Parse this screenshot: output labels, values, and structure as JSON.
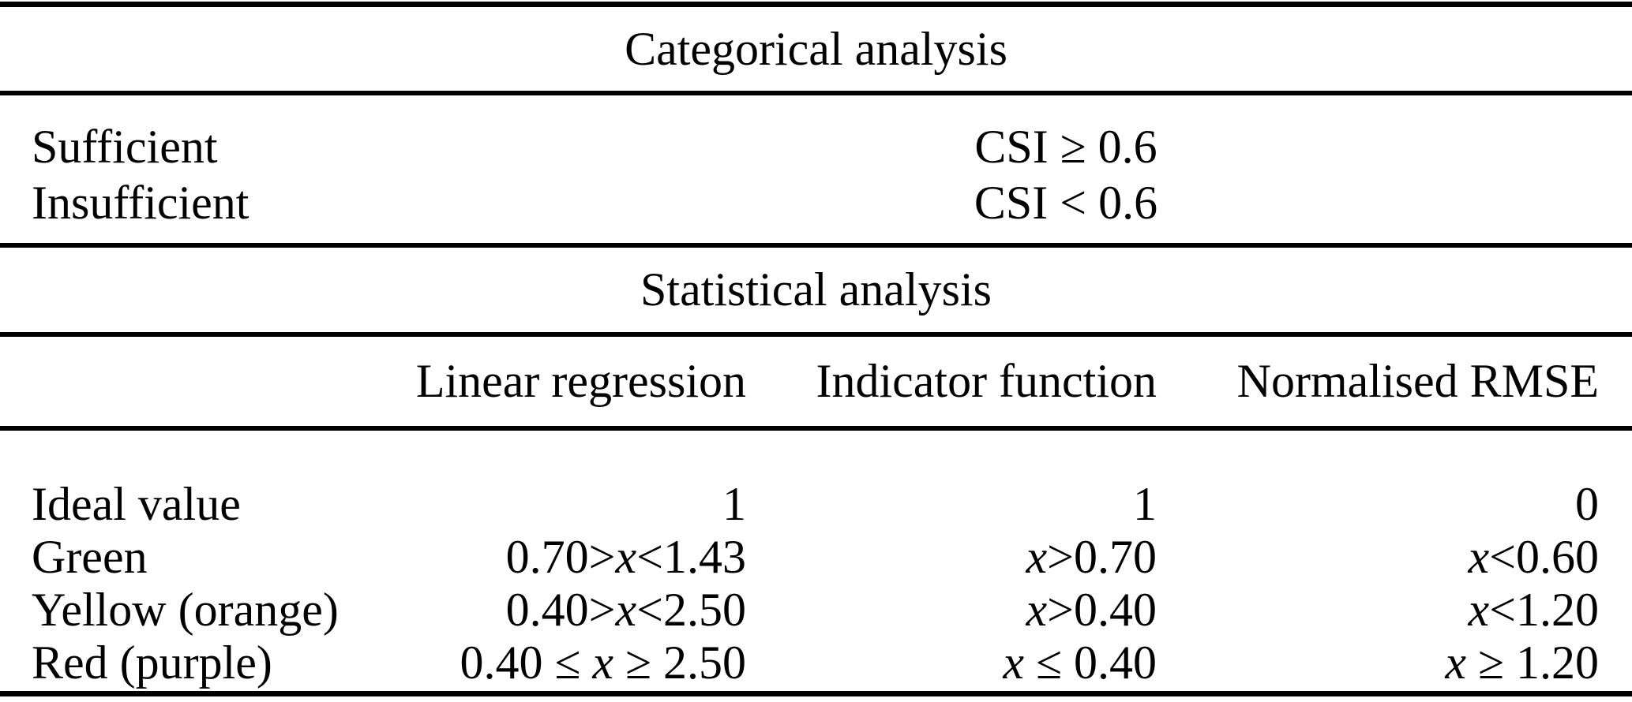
{
  "document": {
    "background_color": "#ffffff",
    "text_color": "#000000"
  },
  "categorical": {
    "title": "Categorical analysis",
    "rows": [
      {
        "label": "Sufficient",
        "value": "CSI ≥ 0.6"
      },
      {
        "label": "Insufficient",
        "value": "CSI < 0.6"
      }
    ]
  },
  "statistical": {
    "title": "Statistical analysis",
    "columns": [
      "Linear regression",
      "Indicator function",
      "Normalised RMSE"
    ],
    "rows": [
      {
        "label": "Ideal value",
        "values": [
          "1",
          "1",
          "0"
        ]
      },
      {
        "label": "Green",
        "values": [
          "0.70>x<1.43",
          "x>0.70",
          "x<0.60"
        ]
      },
      {
        "label": "Yellow (orange)",
        "values": [
          "0.40>x<2.50",
          "x>0.40",
          "x<1.20"
        ]
      },
      {
        "label": "Red (purple)",
        "values": [
          "0.40 ≤ x ≥ 2.50",
          "x ≤ 0.40",
          "x ≥ 1.20"
        ]
      }
    ]
  }
}
